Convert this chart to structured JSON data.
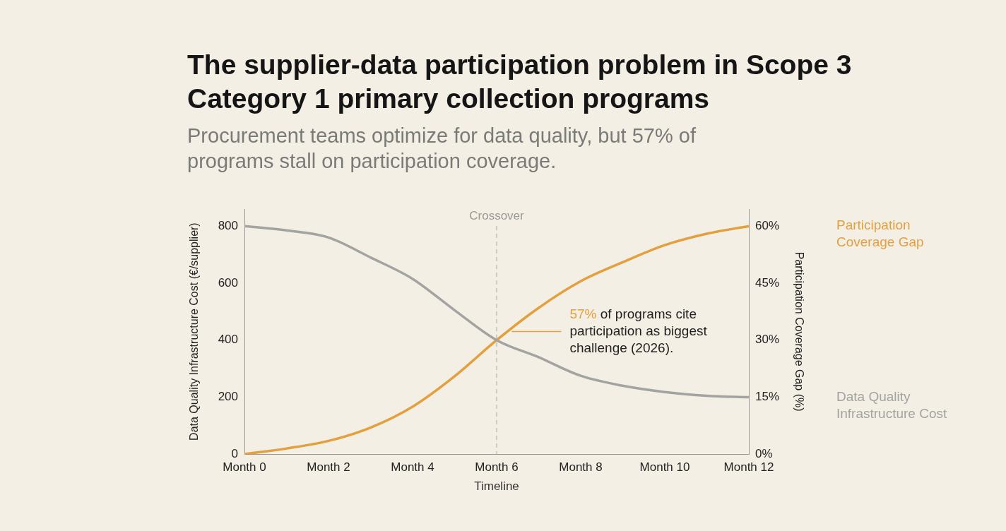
{
  "chart_data": {
    "type": "line",
    "title": "The supplier-data participation problem in Scope 3 Category 1 primary collection programs",
    "subtitle": "Procurement teams optimize for data quality, but 57% of programs stall on participation coverage.",
    "xlabel": "Timeline",
    "ylabel": "Data Quality Infrastructure Cost (€/supplier)",
    "y2label": "Participation Coverage Gap (%)",
    "categories": [
      "Month 0",
      null,
      "Month 2",
      null,
      "Month 4",
      null,
      "Month 6",
      null,
      "Month 8",
      null,
      "Month 10",
      null,
      "Month 12"
    ],
    "series": [
      {
        "name": "Data Quality Infrastructure Cost",
        "color": "#a3a3a1",
        "values": [
          800,
          785,
          760,
          690,
          615,
          505,
          400,
          340,
          275,
          240,
          218,
          205,
          200
        ]
      },
      {
        "name": "Participation Coverage Gap",
        "color": "#e49f3f",
        "axis": "y2",
        "values": [
          0,
          1.5,
          3.5,
          7,
          12.5,
          20.5,
          30,
          38.5,
          45.5,
          50.5,
          55,
          58,
          60
        ]
      }
    ],
    "ylim": [
      0,
      860
    ],
    "yticks": [
      0,
      200,
      400,
      600,
      800
    ],
    "y2lim": [
      0,
      64.5
    ],
    "y2ticks": [
      {
        "value": 0,
        "label": "0%"
      },
      {
        "value": 15,
        "label": "15%"
      },
      {
        "value": 30,
        "label": "30%"
      },
      {
        "value": 45,
        "label": "45%"
      },
      {
        "value": 60,
        "label": "60%"
      }
    ],
    "ref_lines": [
      {
        "axis": "x",
        "value": "Month 6",
        "label": "Crossover",
        "color": "#b5b5b0",
        "line_style": "dashed"
      }
    ],
    "annotations": [
      "57% of programs cite participation as biggest challenge (2026)."
    ],
    "grid": false,
    "legend": false,
    "marker": "none",
    "line_style": "solid"
  }
}
